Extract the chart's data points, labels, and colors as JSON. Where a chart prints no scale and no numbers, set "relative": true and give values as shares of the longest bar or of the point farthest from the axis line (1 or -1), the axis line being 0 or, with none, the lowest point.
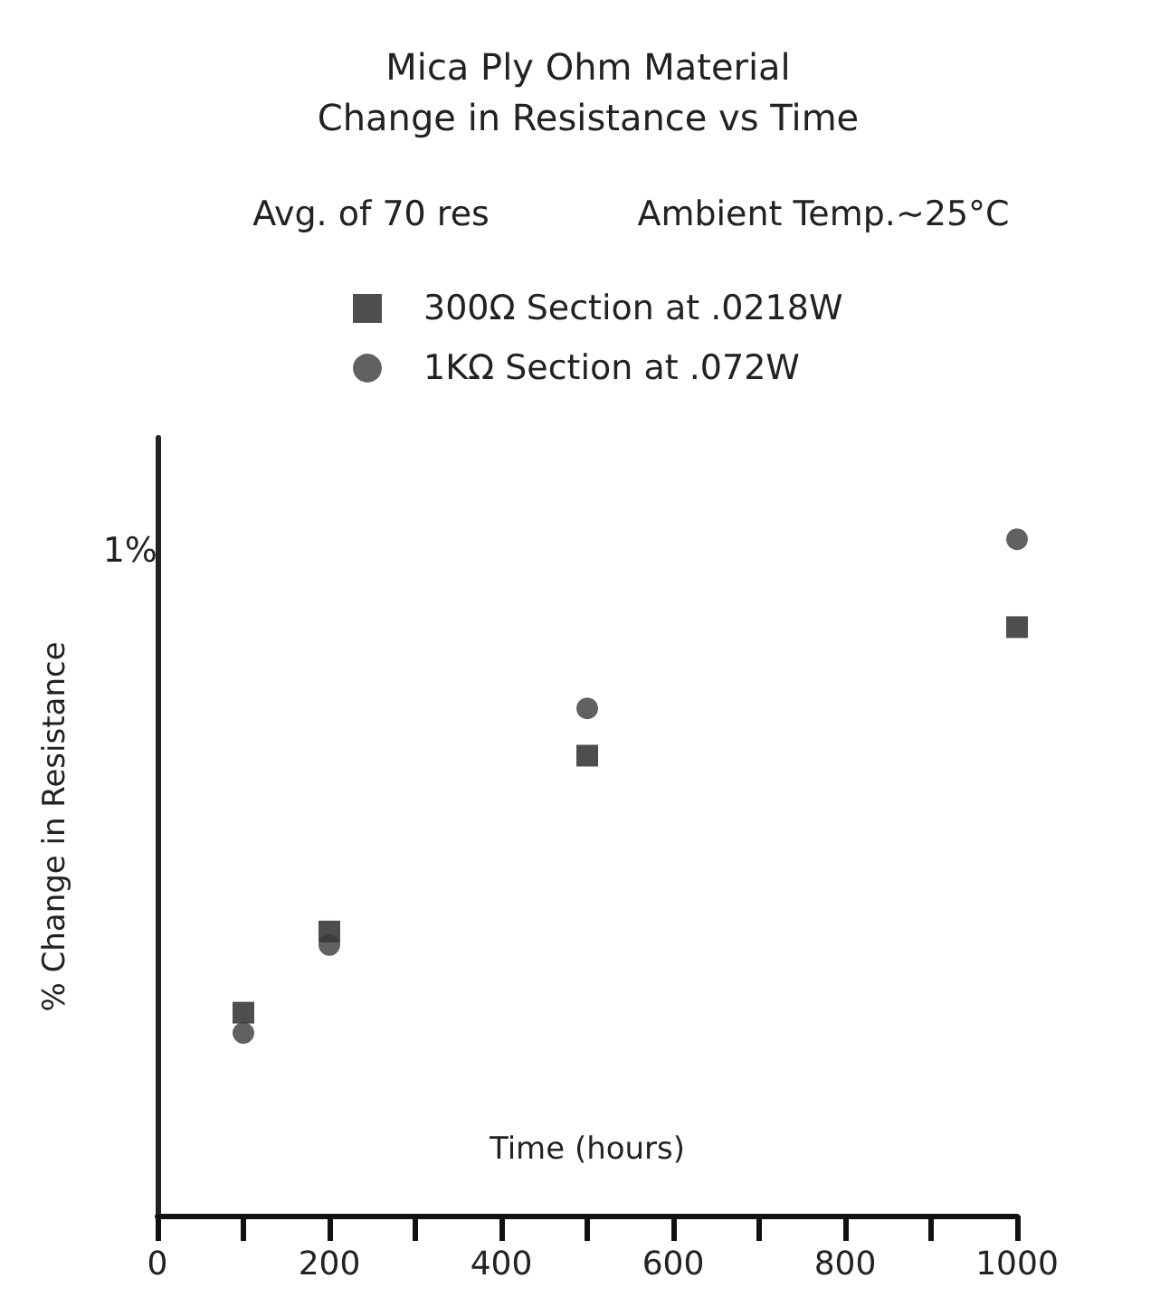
{
  "chart_data": {
    "type": "scatter",
    "title": "Mica Ply Ohm Material",
    "subtitle": "Change in Resistance vs Time",
    "annotations": [
      "Avg. of 70 res",
      "Ambient Temp.~25°C",
      "1%"
    ],
    "xlabel": "Time (hours)",
    "ylabel": "% Change in Resistance",
    "x": [
      100,
      200,
      500,
      1000
    ],
    "series": [
      {
        "name": "300Ω Section at .0218W",
        "color": "#222222",
        "marker": "square",
        "values": [
          0.3,
          0.42,
          0.68,
          0.87
        ]
      },
      {
        "name": "1KΩ Section at .072W",
        "color": "#3a3a3a",
        "marker": "circle",
        "values": [
          0.27,
          0.4,
          0.75,
          1
        ]
      }
    ],
    "relative": true,
    "xlim": [
      0,
      1000
    ],
    "xticks": [
      0,
      {
        "value": 100,
        "label": null
      },
      200,
      {
        "value": 300,
        "label": null
      },
      400,
      {
        "value": 500,
        "label": null
      },
      600,
      {
        "value": 700,
        "label": null
      },
      800,
      {
        "value": 900,
        "label": null
      },
      1000
    ],
    "grid": false,
    "legend": "top"
  }
}
